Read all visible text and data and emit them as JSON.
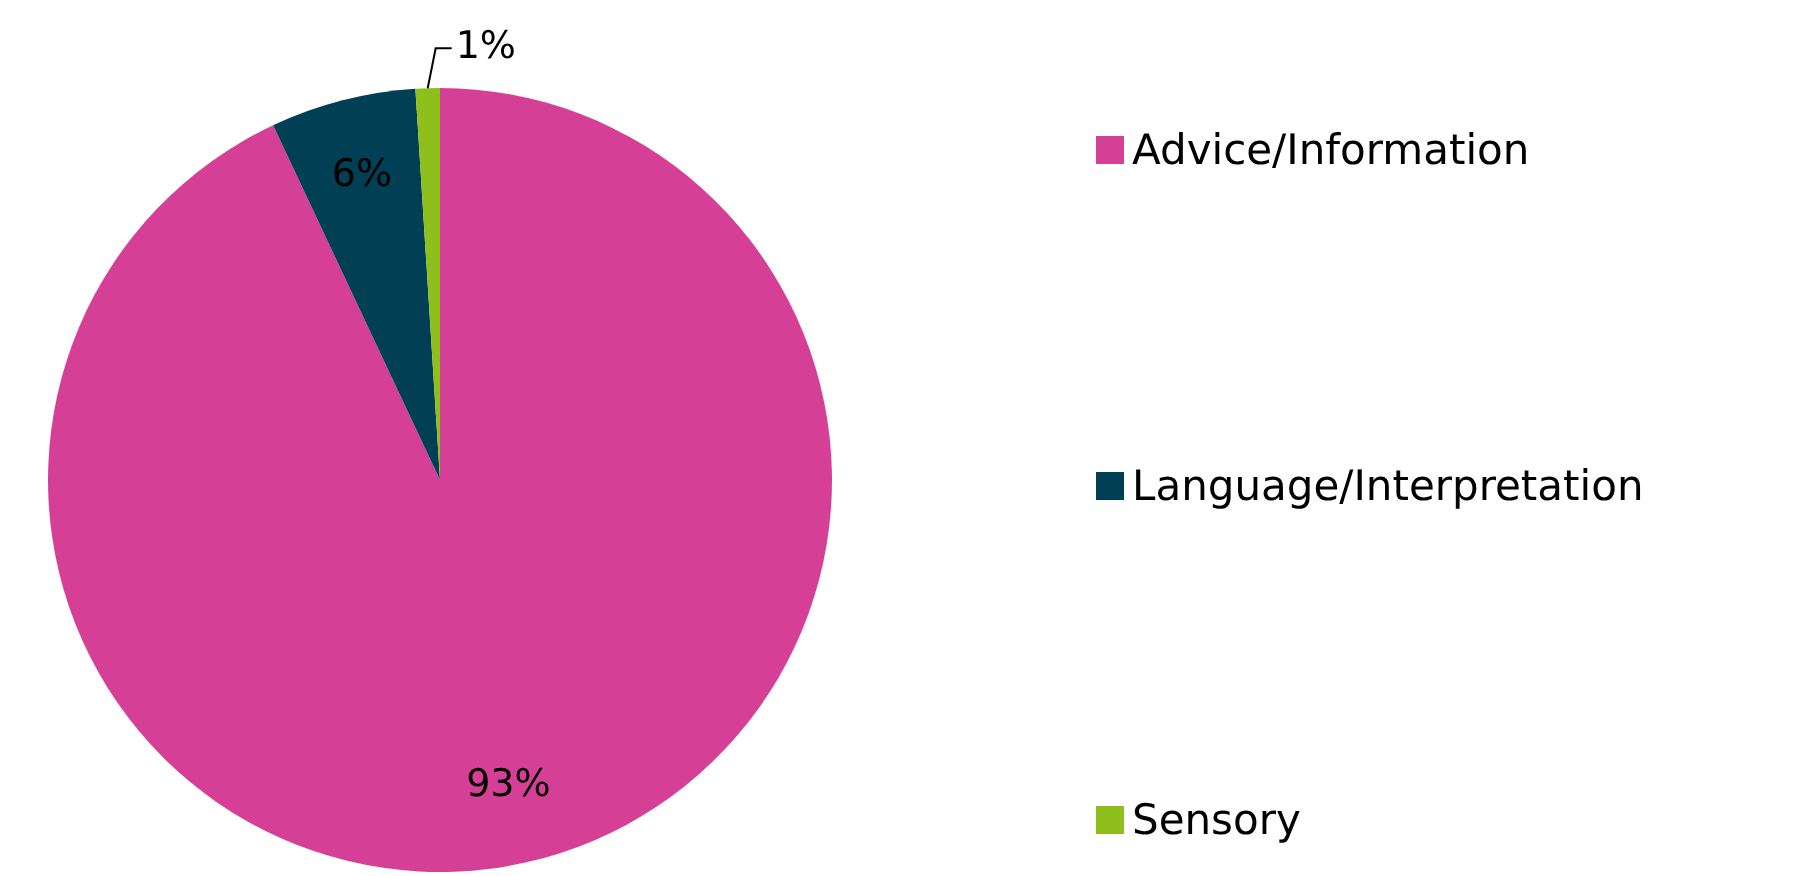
{
  "chart_data": {
    "type": "pie",
    "categories": [
      "Advice/Information",
      "Language/Interpretation",
      "Sensory"
    ],
    "values": [
      93,
      6,
      1
    ],
    "colors": [
      "#d63f96",
      "#003f54",
      "#8fbf1a"
    ],
    "value_labels": [
      "93%",
      "6%",
      "1%"
    ],
    "legend": "right"
  }
}
